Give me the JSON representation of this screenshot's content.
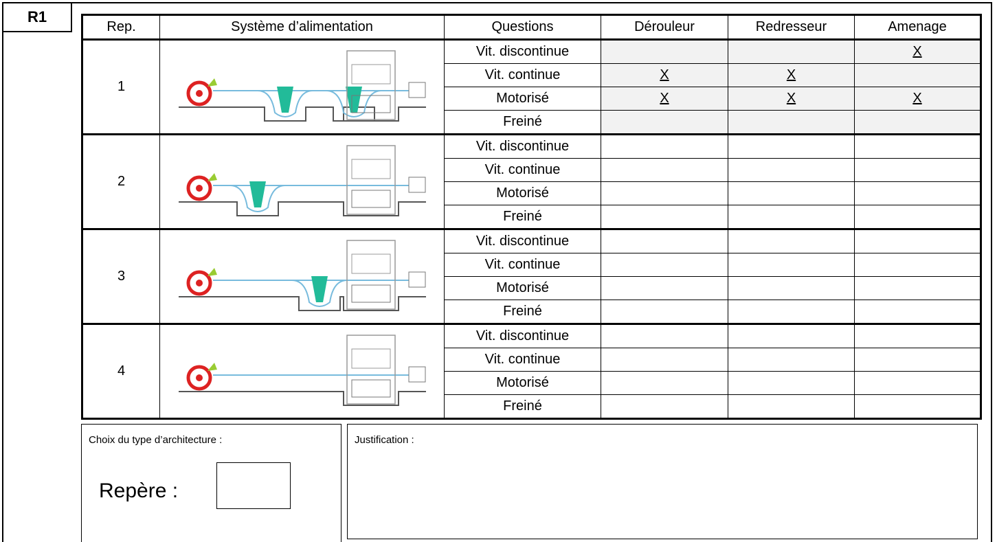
{
  "label": "R1",
  "table": {
    "header": [
      "Rep.",
      "Système d’alimentation",
      "Questions",
      "Dérouleur",
      "Redresseur",
      "Amenage"
    ],
    "groups": [
      {
        "rep": "1",
        "rows": [
          {
            "question": "Vit. discontinue",
            "answers": [
              null,
              null,
              "X"
            ]
          },
          {
            "question": "Vit. continue",
            "answers": [
              "X",
              "X",
              null
            ]
          },
          {
            "question": "Motorisé",
            "answers": [
              "X",
              "X",
              "X"
            ]
          },
          {
            "question": "Freiné",
            "answers": [
              null,
              null,
              null
            ]
          }
        ]
      },
      {
        "rep": "2",
        "rows": [
          {
            "question": "Vit. discontinue",
            "answers": [
              null,
              null,
              null
            ]
          },
          {
            "question": "Vit. continue",
            "answers": [
              null,
              null,
              null
            ]
          },
          {
            "question": "Motorisé",
            "answers": [
              null,
              null,
              null
            ]
          },
          {
            "question": "Freiné",
            "answers": [
              null,
              null,
              null
            ]
          }
        ]
      },
      {
        "rep": "3",
        "rows": [
          {
            "question": "Vit. discontinue",
            "answers": [
              null,
              null,
              null
            ]
          },
          {
            "question": "Vit. continue",
            "answers": [
              null,
              null,
              null
            ]
          },
          {
            "question": "Motorisé",
            "answers": [
              null,
              null,
              null
            ]
          },
          {
            "question": "Freiné",
            "answers": [
              null,
              null,
              null
            ]
          }
        ]
      },
      {
        "rep": "4",
        "rows": [
          {
            "question": "Vit. discontinue",
            "answers": [
              null,
              null,
              null
            ]
          },
          {
            "question": "Vit. continue",
            "answers": [
              null,
              null,
              null
            ]
          },
          {
            "question": "Motorisé",
            "answers": [
              null,
              null,
              null
            ]
          },
          {
            "question": "Freiné",
            "answers": [
              null,
              null,
              null
            ]
          }
        ]
      }
    ]
  },
  "choice": {
    "label": "Choix du type d’architecture :",
    "field": "Repère :"
  },
  "justification": {
    "label": "Justification :"
  }
}
